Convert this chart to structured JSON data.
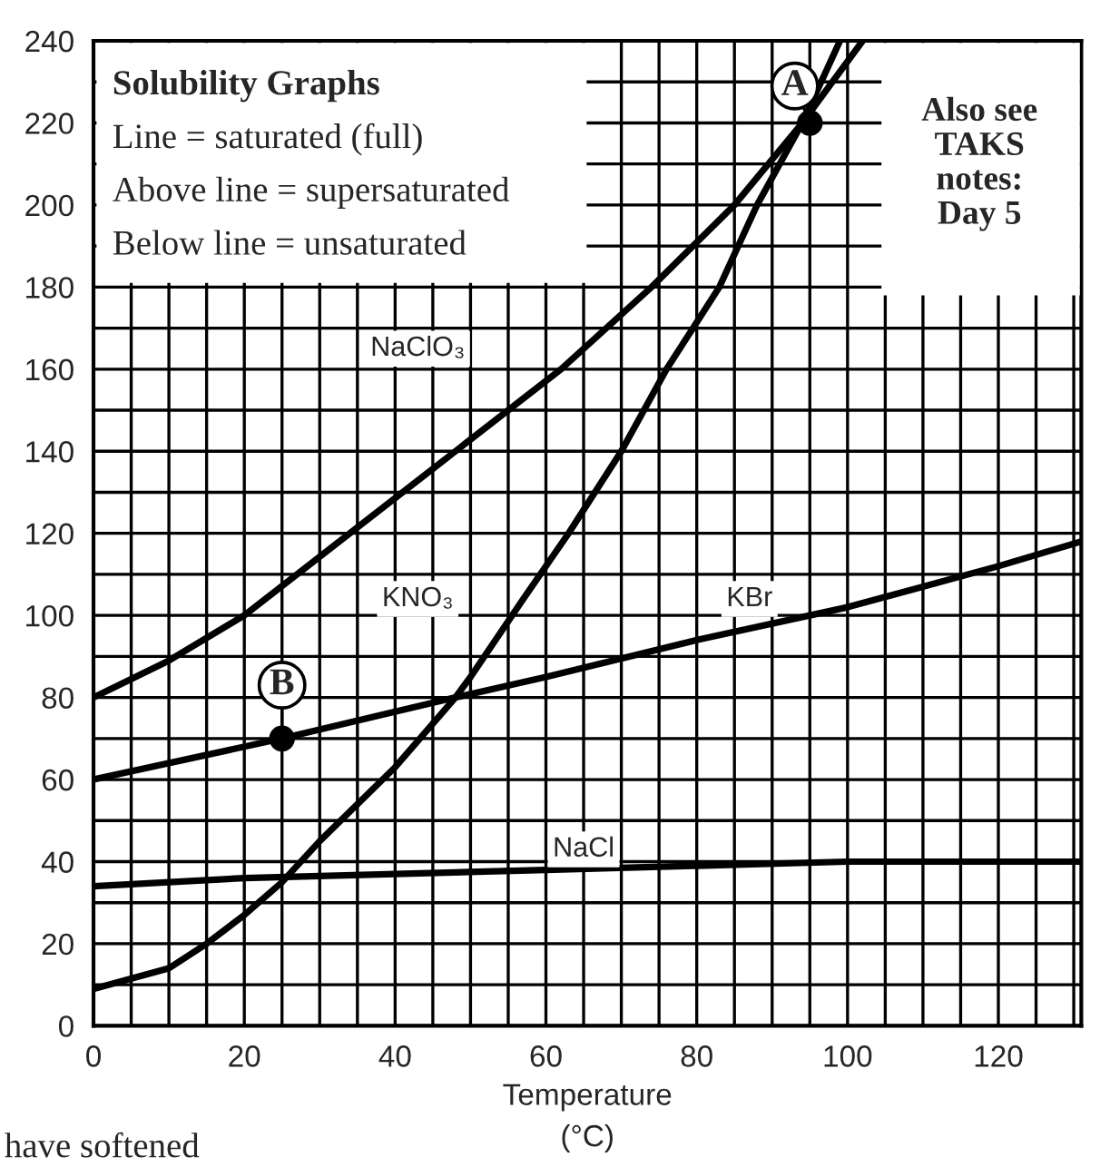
{
  "chart_data": {
    "type": "line",
    "xlabel": "Temperature\n(°C)",
    "series": [
      {
        "name": "NaClO₃",
        "color": "#000000",
        "x": [
          0,
          10,
          20,
          34,
          48,
          62,
          74,
          85,
          94,
          102
        ],
        "values": [
          80,
          89,
          100,
          120,
          140,
          160,
          180,
          200,
          220,
          240
        ]
      },
      {
        "name": "KNO₃",
        "color": "#000000",
        "x": [
          0,
          10,
          15,
          20,
          25,
          30,
          40,
          48,
          50,
          57,
          63,
          70,
          76,
          83,
          88,
          94,
          99
        ],
        "values": [
          9,
          14,
          20,
          27,
          35,
          45,
          63,
          80,
          85,
          104,
          120,
          140,
          160,
          180,
          200,
          220,
          240
        ]
      },
      {
        "name": "KBr",
        "color": "#000000",
        "x": [
          0,
          25,
          48,
          60,
          80,
          100,
          120,
          131
        ],
        "values": [
          60,
          70,
          80,
          85,
          94,
          102,
          112,
          118
        ]
      },
      {
        "name": "NaCl",
        "color": "#000000",
        "x": [
          0,
          20,
          40,
          60,
          80,
          100,
          131
        ],
        "values": [
          34,
          36,
          37,
          38,
          39,
          40,
          40
        ]
      },
      {
        "type": "scatter",
        "marker": "circle",
        "color": "#000000",
        "x": [
          95,
          25
        ],
        "values": [
          220,
          70
        ]
      }
    ],
    "annotations": [
      "Solubility Graphs",
      "Line = saturated (full)",
      "Above line = supersaturated",
      "Below line = unsaturated",
      "Also see\nTAKS\nnotes:\nDay 5",
      "have softened",
      {
        "text": "A",
        "x": 95,
        "y": 220
      },
      {
        "text": "B",
        "x": 25,
        "y": 70
      }
    ],
    "xlim": [
      0,
      131
    ],
    "ylim": [
      0,
      240
    ],
    "xticks": [
      0,
      {
        "value": 5,
        "label": null
      },
      {
        "value": 10,
        "label": null
      },
      {
        "value": 15,
        "label": null
      },
      20,
      {
        "value": 25,
        "label": null
      },
      {
        "value": 30,
        "label": null
      },
      {
        "value": 35,
        "label": null
      },
      40,
      {
        "value": 45,
        "label": null
      },
      {
        "value": 50,
        "label": null
      },
      {
        "value": 55,
        "label": null
      },
      60,
      {
        "value": 65,
        "label": null
      },
      {
        "value": 70,
        "label": null
      },
      {
        "value": 75,
        "label": null
      },
      80,
      {
        "value": 85,
        "label": null
      },
      {
        "value": 90,
        "label": null
      },
      {
        "value": 95,
        "label": null
      },
      100,
      {
        "value": 105,
        "label": null
      },
      {
        "value": 110,
        "label": null
      },
      {
        "value": 115,
        "label": null
      },
      120,
      {
        "value": 125,
        "label": null
      },
      {
        "value": 130,
        "label": null
      }
    ],
    "yticks": [
      0,
      {
        "value": 10,
        "label": null
      },
      20,
      {
        "value": 30,
        "label": null
      },
      40,
      {
        "value": 50,
        "label": null
      },
      60,
      {
        "value": 70,
        "label": null
      },
      80,
      {
        "value": 90,
        "label": null
      },
      100,
      {
        "value": 110,
        "label": null
      },
      120,
      {
        "value": 130,
        "label": null
      },
      140,
      {
        "value": 150,
        "label": null
      },
      160,
      {
        "value": 170,
        "label": null
      },
      180,
      {
        "value": 190,
        "label": null
      },
      200,
      {
        "value": 210,
        "label": null
      },
      220,
      {
        "value": 230,
        "label": null
      },
      240
    ],
    "grid": true,
    "legend": false,
    "marker": "none",
    "line_style": "solid"
  }
}
